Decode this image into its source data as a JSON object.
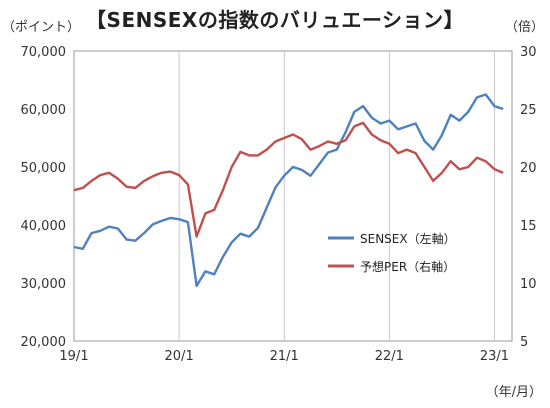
{
  "chart_data": {
    "type": "line",
    "title": "【SENSEXの指数のバリュエーション】",
    "left_axis_unit": "（ポイント）",
    "right_axis_unit": "（倍）",
    "x_axis_unit": "（年/月）",
    "x_ticks": [
      "19/1",
      "20/1",
      "21/1",
      "22/1",
      "23/1"
    ],
    "x_range": [
      "2019-01",
      "2023-03"
    ],
    "y_left": {
      "min": 20000,
      "max": 70000,
      "ticks": [
        "20,000",
        "30,000",
        "40,000",
        "50,000",
        "60,000",
        "70,000"
      ]
    },
    "y_right": {
      "min": 5,
      "max": 30,
      "ticks": [
        "5",
        "10",
        "15",
        "20",
        "25",
        "30"
      ]
    },
    "grid": "vertical-at-year-ticks",
    "legend": {
      "placement": "middle-right"
    },
    "series": [
      {
        "name": "SENSEX（左軸）",
        "axis": "left",
        "color": "#4f81bd",
        "points": [
          [
            "2019-01",
            36200
          ],
          [
            "2019-02",
            35900
          ],
          [
            "2019-03",
            38600
          ],
          [
            "2019-04",
            39000
          ],
          [
            "2019-05",
            39700
          ],
          [
            "2019-06",
            39400
          ],
          [
            "2019-07",
            37500
          ],
          [
            "2019-08",
            37300
          ],
          [
            "2019-09",
            38600
          ],
          [
            "2019-10",
            40100
          ],
          [
            "2019-11",
            40700
          ],
          [
            "2019-12",
            41200
          ],
          [
            "2020-01",
            41000
          ],
          [
            "2020-02",
            40500
          ],
          [
            "2020-03",
            29500
          ],
          [
            "2020-04",
            32000
          ],
          [
            "2020-05",
            31500
          ],
          [
            "2020-06",
            34500
          ],
          [
            "2020-07",
            37000
          ],
          [
            "2020-08",
            38500
          ],
          [
            "2020-09",
            38000
          ],
          [
            "2020-10",
            39500
          ],
          [
            "2020-11",
            43000
          ],
          [
            "2020-12",
            46500
          ],
          [
            "2021-01",
            48500
          ],
          [
            "2021-02",
            50000
          ],
          [
            "2021-03",
            49500
          ],
          [
            "2021-04",
            48500
          ],
          [
            "2021-05",
            50500
          ],
          [
            "2021-06",
            52500
          ],
          [
            "2021-07",
            53000
          ],
          [
            "2021-08",
            56000
          ],
          [
            "2021-09",
            59500
          ],
          [
            "2021-10",
            60500
          ],
          [
            "2021-11",
            58500
          ],
          [
            "2021-12",
            57500
          ],
          [
            "2022-01",
            58000
          ],
          [
            "2022-02",
            56500
          ],
          [
            "2022-03",
            57000
          ],
          [
            "2022-04",
            57500
          ],
          [
            "2022-05",
            54500
          ],
          [
            "2022-06",
            53000
          ],
          [
            "2022-07",
            55500
          ],
          [
            "2022-08",
            59000
          ],
          [
            "2022-09",
            58000
          ],
          [
            "2022-10",
            59500
          ],
          [
            "2022-11",
            62000
          ],
          [
            "2022-12",
            62500
          ],
          [
            "2023-01",
            60500
          ],
          [
            "2023-02",
            60000
          ]
        ]
      },
      {
        "name": "予想PER（右軸）",
        "axis": "right",
        "color": "#c0504d",
        "points": [
          [
            "2019-01",
            18.0
          ],
          [
            "2019-02",
            18.2
          ],
          [
            "2019-03",
            18.8
          ],
          [
            "2019-04",
            19.3
          ],
          [
            "2019-05",
            19.5
          ],
          [
            "2019-06",
            19.0
          ],
          [
            "2019-07",
            18.3
          ],
          [
            "2019-08",
            18.2
          ],
          [
            "2019-09",
            18.8
          ],
          [
            "2019-10",
            19.2
          ],
          [
            "2019-11",
            19.5
          ],
          [
            "2019-12",
            19.6
          ],
          [
            "2020-01",
            19.3
          ],
          [
            "2020-02",
            18.5
          ],
          [
            "2020-03",
            14.0
          ],
          [
            "2020-04",
            16.0
          ],
          [
            "2020-05",
            16.3
          ],
          [
            "2020-06",
            18.0
          ],
          [
            "2020-07",
            20.0
          ],
          [
            "2020-08",
            21.3
          ],
          [
            "2020-09",
            21.0
          ],
          [
            "2020-10",
            21.0
          ],
          [
            "2020-11",
            21.5
          ],
          [
            "2020-12",
            22.2
          ],
          [
            "2021-01",
            22.5
          ],
          [
            "2021-02",
            22.8
          ],
          [
            "2021-03",
            22.4
          ],
          [
            "2021-04",
            21.5
          ],
          [
            "2021-05",
            21.8
          ],
          [
            "2021-06",
            22.2
          ],
          [
            "2021-07",
            22.0
          ],
          [
            "2021-08",
            22.3
          ],
          [
            "2021-09",
            23.5
          ],
          [
            "2021-10",
            23.8
          ],
          [
            "2021-11",
            22.8
          ],
          [
            "2021-12",
            22.3
          ],
          [
            "2022-01",
            22.0
          ],
          [
            "2022-02",
            21.2
          ],
          [
            "2022-03",
            21.5
          ],
          [
            "2022-04",
            21.2
          ],
          [
            "2022-05",
            20.0
          ],
          [
            "2022-06",
            18.8
          ],
          [
            "2022-07",
            19.5
          ],
          [
            "2022-08",
            20.5
          ],
          [
            "2022-09",
            19.8
          ],
          [
            "2022-10",
            20.0
          ],
          [
            "2022-11",
            20.8
          ],
          [
            "2022-12",
            20.5
          ],
          [
            "2023-01",
            19.8
          ],
          [
            "2023-02",
            19.5
          ]
        ]
      }
    ]
  }
}
